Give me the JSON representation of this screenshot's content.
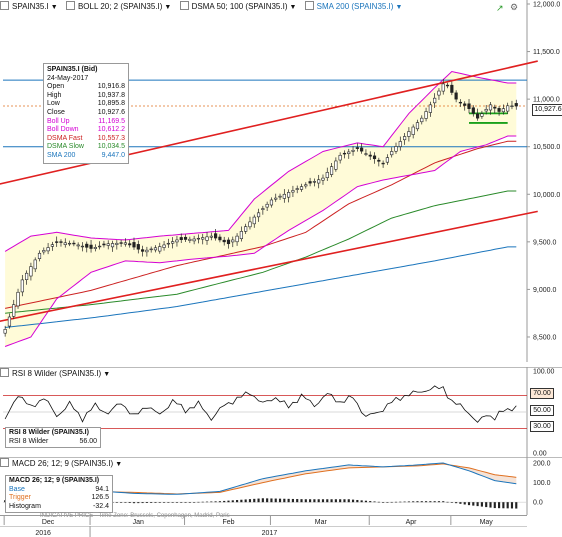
{
  "legend": {
    "items": [
      {
        "label": "SPAIN35.I"
      },
      {
        "label": "BOLL 20; 2 (SPAIN35.I)"
      },
      {
        "label": "DSMA 50; 100 (SPAIN35.I)"
      },
      {
        "label": "SMA 200 (SPAIN35.I)"
      }
    ]
  },
  "infobox": {
    "title": "SPAIN35.I (Bid)",
    "date": "24-May-2017",
    "rows": [
      {
        "label": "Open",
        "value": "10,916.8",
        "color": "#111111"
      },
      {
        "label": "High",
        "value": "10,937.8",
        "color": "#111111"
      },
      {
        "label": "Low",
        "value": "10,895.8",
        "color": "#111111"
      },
      {
        "label": "Close",
        "value": "10,927.6",
        "color": "#111111"
      },
      {
        "label": "Boll Up",
        "value": "11,169.5",
        "color": "#d400d4"
      },
      {
        "label": "Boll Down",
        "value": "10,612.2",
        "color": "#d400d4"
      },
      {
        "label": "DSMA Fast",
        "value": "10,557.3",
        "color": "#cc2222"
      },
      {
        "label": "DSMA Slow",
        "value": "10,034.5",
        "color": "#2a8a2a"
      },
      {
        "label": "SMA 200",
        "value": "9,447.0",
        "color": "#1b75bc"
      }
    ]
  },
  "last_price": "10,927.6",
  "rsi": {
    "legend": "RSI 8 Wilder (SPAIN35.I)",
    "title": "RSI 8 Wilder (SPAIN35.I)",
    "row_label": "RSI 8 Wilder",
    "row_value": "56.00",
    "tags": [
      "70.00",
      "50.00",
      "30.00"
    ]
  },
  "macd": {
    "legend": "MACD 26; 12; 9 (SPAIN35.I)",
    "title": "MACD 26; 12; 9 (SPAIN35.I)",
    "rows": [
      {
        "label": "Base",
        "value": "94.1",
        "color": "#1b75bc"
      },
      {
        "label": "Trigger",
        "value": "126.5",
        "color": "#e07020"
      },
      {
        "label": "Histogram",
        "value": "-32.4",
        "color": "#111111"
      }
    ]
  },
  "footer_note": "INDICATIVE PRICE · Time Zone: Brussels, Copenhagen, Madrid, Paris",
  "x_axis": {
    "months": [
      "Dec",
      "Jan",
      "Feb",
      "Mar",
      "Apr",
      "May"
    ],
    "years": [
      "2016",
      "2017"
    ]
  },
  "chart_data": [
    {
      "type": "candlestick",
      "title": "SPAIN35.I",
      "ylim": [
        8300,
        12000
      ],
      "y_ticks": [
        "8,500.0",
        "9,000.0",
        "9,500.0",
        "10,000.0",
        "10,500.0",
        "11,000.0",
        "11,500.0",
        "12,000.0"
      ],
      "y_tick_values": [
        8500,
        9000,
        9500,
        10000,
        10500,
        11000,
        11500,
        12000
      ],
      "x_categories": [
        "Dec",
        "Jan",
        "Feb",
        "Mar",
        "Apr",
        "May"
      ],
      "sessions": 122,
      "session_of_month_start": {
        "Dec": 0,
        "Jan": 20,
        "Feb": 42,
        "Mar": 62,
        "Apr": 85,
        "May": 104
      },
      "close_keypoints": [
        [
          0,
          8580
        ],
        [
          4,
          9100
        ],
        [
          8,
          9380
        ],
        [
          12,
          9500
        ],
        [
          16,
          9480
        ],
        [
          20,
          9430
        ],
        [
          24,
          9480
        ],
        [
          28,
          9490
        ],
        [
          32,
          9400
        ],
        [
          36,
          9450
        ],
        [
          40,
          9520
        ],
        [
          44,
          9530
        ],
        [
          48,
          9560
        ],
        [
          52,
          9480
        ],
        [
          54,
          9560
        ],
        [
          58,
          9760
        ],
        [
          62,
          9940
        ],
        [
          66,
          10020
        ],
        [
          70,
          10100
        ],
        [
          74,
          10170
        ],
        [
          78,
          10410
        ],
        [
          82,
          10480
        ],
        [
          85,
          10400
        ],
        [
          88,
          10320
        ],
        [
          90,
          10450
        ],
        [
          94,
          10660
        ],
        [
          97,
          10800
        ],
        [
          100,
          11010
        ],
        [
          102,
          11160
        ],
        [
          103,
          11140
        ],
        [
          105,
          11000
        ],
        [
          108,
          10900
        ],
        [
          110,
          10800
        ],
        [
          113,
          10940
        ],
        [
          115,
          10870
        ],
        [
          117,
          10930
        ],
        [
          119,
          10927.6
        ]
      ],
      "bollinger_upper_keypoints": [
        [
          0,
          9400
        ],
        [
          6,
          9560
        ],
        [
          12,
          9600
        ],
        [
          20,
          9540
        ],
        [
          28,
          9520
        ],
        [
          36,
          9560
        ],
        [
          44,
          9590
        ],
        [
          52,
          9620
        ],
        [
          58,
          9950
        ],
        [
          66,
          10240
        ],
        [
          74,
          10450
        ],
        [
          82,
          10540
        ],
        [
          88,
          10500
        ],
        [
          94,
          10850
        ],
        [
          100,
          11120
        ],
        [
          104,
          11290
        ],
        [
          110,
          11230
        ],
        [
          117,
          11169.5
        ]
      ],
      "bollinger_lower_keypoints": [
        [
          0,
          8400
        ],
        [
          6,
          8500
        ],
        [
          12,
          8900
        ],
        [
          20,
          9180
        ],
        [
          28,
          9300
        ],
        [
          36,
          9280
        ],
        [
          44,
          9320
        ],
        [
          52,
          9350
        ],
        [
          58,
          9380
        ],
        [
          66,
          9620
        ],
        [
          74,
          9830
        ],
        [
          82,
          10080
        ],
        [
          88,
          10150
        ],
        [
          94,
          10200
        ],
        [
          100,
          10250
        ],
        [
          106,
          10450
        ],
        [
          112,
          10520
        ],
        [
          117,
          10612.2
        ]
      ],
      "dsma_fast_keypoints": [
        [
          0,
          8800
        ],
        [
          20,
          8990
        ],
        [
          40,
          9250
        ],
        [
          60,
          9450
        ],
        [
          70,
          9600
        ],
        [
          80,
          9900
        ],
        [
          90,
          10100
        ],
        [
          100,
          10330
        ],
        [
          110,
          10480
        ],
        [
          117,
          10557.3
        ]
      ],
      "dsma_slow_keypoints": [
        [
          0,
          8750
        ],
        [
          20,
          8840
        ],
        [
          40,
          8950
        ],
        [
          60,
          9180
        ],
        [
          70,
          9340
        ],
        [
          80,
          9530
        ],
        [
          90,
          9750
        ],
        [
          100,
          9880
        ],
        [
          110,
          9970
        ],
        [
          117,
          10034.5
        ]
      ],
      "sma200_keypoints": [
        [
          0,
          8600
        ],
        [
          20,
          8700
        ],
        [
          40,
          8820
        ],
        [
          60,
          8980
        ],
        [
          80,
          9140
        ],
        [
          100,
          9300
        ],
        [
          117,
          9447.0
        ]
      ],
      "trendlines": [
        {
          "name": "upper channel",
          "from": [
            -4,
            10080
          ],
          "to": [
            124,
            11400
          ],
          "color": "#e02020"
        },
        {
          "name": "lower channel",
          "from": [
            -4,
            8640
          ],
          "to": [
            124,
            9820
          ],
          "color": "#e02020"
        }
      ],
      "horizontal_lines": [
        {
          "value": 11200,
          "color": "#1b75bc"
        },
        {
          "value": 10500,
          "color": "#1b75bc"
        },
        {
          "value": 10927.6,
          "color": "#e07020",
          "dashed": true
        }
      ],
      "consolidation_lines": [
        {
          "from": 108,
          "to": 117,
          "value": 10850,
          "color": "#1aa01a"
        },
        {
          "from": 108,
          "to": 117,
          "value": 10750,
          "color": "#1aa01a"
        }
      ],
      "colors": {
        "up": "#ffffff",
        "down": "#222222",
        "boll": "#d400d4",
        "boll_fill": "#fffbd8",
        "dsma_fast": "#cc2222",
        "dsma_slow": "#2a8a2a",
        "sma200": "#1b75bc"
      }
    },
    {
      "type": "line",
      "title": "RSI 8 Wilder (SPAIN35.I)",
      "ylim": [
        0,
        100
      ],
      "y_ticks": [
        "0.00",
        "100.00"
      ],
      "y_tick_values": [
        0,
        100
      ],
      "levels": [
        70,
        50,
        30
      ],
      "keypoints": [
        [
          0,
          40
        ],
        [
          3,
          72
        ],
        [
          6,
          55
        ],
        [
          9,
          68
        ],
        [
          12,
          45
        ],
        [
          15,
          60
        ],
        [
          18,
          42
        ],
        [
          21,
          58
        ],
        [
          24,
          48
        ],
        [
          27,
          62
        ],
        [
          30,
          44
        ],
        [
          33,
          58
        ],
        [
          36,
          46
        ],
        [
          39,
          64
        ],
        [
          42,
          52
        ],
        [
          45,
          60
        ],
        [
          48,
          42
        ],
        [
          51,
          58
        ],
        [
          54,
          66
        ],
        [
          57,
          74
        ],
        [
          60,
          60
        ],
        [
          63,
          68
        ],
        [
          66,
          56
        ],
        [
          69,
          70
        ],
        [
          72,
          58
        ],
        [
          75,
          72
        ],
        [
          78,
          62
        ],
        [
          81,
          68
        ],
        [
          84,
          44
        ],
        [
          87,
          50
        ],
        [
          90,
          62
        ],
        [
          93,
          70
        ],
        [
          96,
          74
        ],
        [
          99,
          78
        ],
        [
          102,
          80
        ],
        [
          104,
          62
        ],
        [
          107,
          55
        ],
        [
          110,
          36
        ],
        [
          112,
          48
        ],
        [
          114,
          42
        ],
        [
          116,
          52
        ],
        [
          119,
          56
        ]
      ],
      "color": "#111111",
      "level_color": "#cc2222"
    },
    {
      "type": "line",
      "title": "MACD 26; 12; 9 (SPAIN35.I)",
      "ylim": [
        -50,
        210
      ],
      "y_ticks": [
        "0.0",
        "100.0",
        "200.0"
      ],
      "y_tick_values": [
        0,
        100,
        200
      ],
      "base_keypoints": [
        [
          0,
          10
        ],
        [
          10,
          40
        ],
        [
          20,
          60
        ],
        [
          30,
          45
        ],
        [
          40,
          40
        ],
        [
          50,
          55
        ],
        [
          60,
          120
        ],
        [
          70,
          160
        ],
        [
          80,
          190
        ],
        [
          88,
          180
        ],
        [
          96,
          190
        ],
        [
          102,
          200
        ],
        [
          108,
          160
        ],
        [
          114,
          110
        ],
        [
          119,
          94.1
        ]
      ],
      "trigger_keypoints": [
        [
          0,
          0
        ],
        [
          10,
          30
        ],
        [
          20,
          55
        ],
        [
          30,
          50
        ],
        [
          40,
          42
        ],
        [
          50,
          50
        ],
        [
          60,
          100
        ],
        [
          70,
          145
        ],
        [
          80,
          175
        ],
        [
          88,
          180
        ],
        [
          96,
          185
        ],
        [
          102,
          195
        ],
        [
          108,
          175
        ],
        [
          114,
          140
        ],
        [
          119,
          126.5
        ]
      ],
      "histogram_keypoints": [
        [
          0,
          10
        ],
        [
          10,
          10
        ],
        [
          20,
          5
        ],
        [
          30,
          -5
        ],
        [
          40,
          -2
        ],
        [
          50,
          5
        ],
        [
          60,
          20
        ],
        [
          70,
          15
        ],
        [
          80,
          15
        ],
        [
          88,
          0
        ],
        [
          96,
          5
        ],
        [
          102,
          5
        ],
        [
          108,
          -15
        ],
        [
          114,
          -30
        ],
        [
          119,
          -32.4
        ]
      ],
      "base_color": "#1b75bc",
      "trigger_color": "#e07020"
    }
  ]
}
